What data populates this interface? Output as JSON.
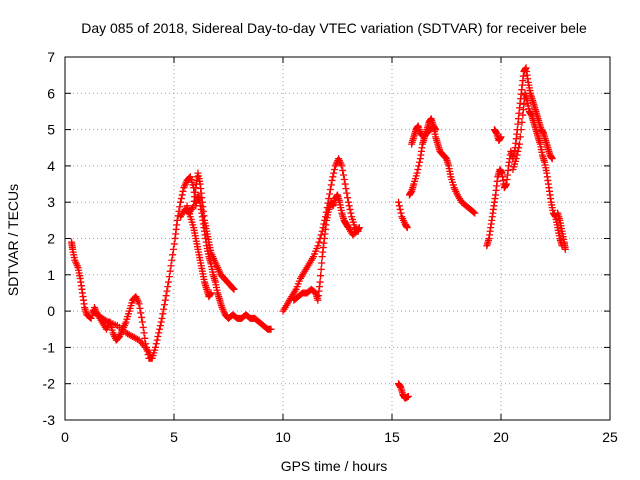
{
  "chart_data": {
    "type": "scatter",
    "title": "Day 085 of 2018, Sidereal Day-to-day VTEC variation (SDTVAR) for receiver bele",
    "xlabel": "GPS time / hours",
    "ylabel": "SDTVAR / TECUs",
    "xlim": [
      0,
      25
    ],
    "ylim": [
      -3,
      7
    ],
    "xticks": [
      0,
      5,
      10,
      15,
      20,
      25
    ],
    "yticks": [
      -3,
      -2,
      -1,
      0,
      1,
      2,
      3,
      4,
      5,
      6,
      7
    ],
    "x_tick_labels": [
      "0",
      "5",
      "10",
      "15",
      "20",
      "25"
    ],
    "y_tick_labels": [
      "-3",
      "-2",
      "-1",
      "0",
      "1",
      "2",
      "3",
      "4",
      "5",
      "6",
      "7"
    ],
    "grid": true,
    "marker": "plus",
    "series": [
      {
        "name": "SDTVAR",
        "color": "#ff0000",
        "segments": [
          [
            [
              0.3,
              1.9
            ],
            [
              0.35,
              1.7
            ],
            [
              0.45,
              1.4
            ],
            [
              0.6,
              1.2
            ],
            [
              0.7,
              0.9
            ],
            [
              0.8,
              0.5
            ],
            [
              0.9,
              0.1
            ],
            [
              1.0,
              -0.1
            ],
            [
              1.2,
              -0.2
            ],
            [
              1.35,
              0.1
            ],
            [
              1.5,
              -0.1
            ],
            [
              1.7,
              -0.3
            ],
            [
              1.9,
              -0.5
            ],
            [
              2.05,
              -0.3
            ],
            [
              2.2,
              -0.6
            ],
            [
              2.35,
              -0.8
            ],
            [
              2.5,
              -0.7
            ],
            [
              2.65,
              -0.5
            ],
            [
              2.8,
              -0.3
            ],
            [
              2.95,
              0.0
            ],
            [
              3.1,
              0.3
            ],
            [
              3.25,
              0.4
            ],
            [
              3.4,
              0.2
            ],
            [
              3.55,
              -0.3
            ],
            [
              3.7,
              -0.9
            ],
            [
              3.85,
              -1.3
            ],
            [
              4.0,
              -1.3
            ],
            [
              4.15,
              -1.0
            ],
            [
              4.3,
              -0.6
            ],
            [
              4.45,
              -0.2
            ],
            [
              4.6,
              0.3
            ],
            [
              4.75,
              0.8
            ],
            [
              4.9,
              1.4
            ],
            [
              5.05,
              2.0
            ],
            [
              5.15,
              2.5
            ],
            [
              5.3,
              3.0
            ],
            [
              5.45,
              3.4
            ],
            [
              5.6,
              3.6
            ],
            [
              5.75,
              3.7
            ],
            [
              5.9,
              3.4
            ],
            [
              6.0,
              2.9
            ],
            [
              6.1,
              3.2
            ],
            [
              6.2,
              3.0
            ],
            [
              6.3,
              2.6
            ],
            [
              6.4,
              2.2
            ],
            [
              6.5,
              1.8
            ],
            [
              6.6,
              1.5
            ],
            [
              6.7,
              1.3
            ],
            [
              6.8,
              1.0
            ],
            [
              6.9,
              0.8
            ],
            [
              7.0,
              0.5
            ],
            [
              7.1,
              0.3
            ],
            [
              7.2,
              0.1
            ],
            [
              7.35,
              -0.1
            ],
            [
              7.5,
              -0.2
            ],
            [
              7.7,
              -0.1
            ],
            [
              7.9,
              -0.2
            ],
            [
              8.1,
              -0.2
            ],
            [
              8.3,
              -0.1
            ],
            [
              8.5,
              -0.2
            ],
            [
              8.7,
              -0.2
            ],
            [
              8.9,
              -0.3
            ],
            [
              9.1,
              -0.4
            ],
            [
              9.3,
              -0.5
            ],
            [
              9.45,
              -0.5
            ]
          ],
          [
            [
              1.3,
              0.0
            ],
            [
              1.5,
              -0.1
            ],
            [
              1.7,
              -0.2
            ],
            [
              2.0,
              -0.3
            ],
            [
              2.4,
              -0.4
            ],
            [
              2.8,
              -0.6
            ],
            [
              3.1,
              -0.7
            ],
            [
              3.4,
              -0.8
            ],
            [
              3.7,
              -1.0
            ],
            [
              3.9,
              -1.2
            ]
          ],
          [
            [
              5.3,
              2.6
            ],
            [
              5.5,
              2.8
            ],
            [
              5.7,
              2.7
            ],
            [
              5.9,
              2.9
            ],
            [
              6.0,
              3.4
            ],
            [
              6.1,
              3.8
            ],
            [
              6.2,
              3.5
            ],
            [
              6.3,
              3.0
            ],
            [
              6.4,
              2.5
            ],
            [
              6.5,
              2.2
            ],
            [
              6.6,
              1.9
            ],
            [
              6.7,
              1.6
            ],
            [
              6.85,
              1.4
            ],
            [
              7.0,
              1.2
            ],
            [
              7.15,
              1.0
            ],
            [
              7.3,
              0.9
            ],
            [
              7.45,
              0.8
            ],
            [
              7.6,
              0.7
            ],
            [
              7.75,
              0.6
            ]
          ],
          [
            [
              5.6,
              2.9
            ],
            [
              5.75,
              2.6
            ],
            [
              5.9,
              2.3
            ],
            [
              6.0,
              2.0
            ],
            [
              6.1,
              1.7
            ],
            [
              6.2,
              1.4
            ],
            [
              6.3,
              1.1
            ],
            [
              6.4,
              0.8
            ],
            [
              6.5,
              0.6
            ],
            [
              6.6,
              0.4
            ],
            [
              6.7,
              0.5
            ]
          ],
          [
            [
              10.0,
              0.0
            ],
            [
              10.2,
              0.2
            ],
            [
              10.4,
              0.4
            ],
            [
              10.6,
              0.6
            ],
            [
              10.8,
              0.9
            ],
            [
              11.0,
              1.1
            ],
            [
              11.2,
              1.3
            ],
            [
              11.4,
              1.5
            ],
            [
              11.6,
              1.8
            ],
            [
              11.8,
              2.2
            ],
            [
              11.95,
              2.6
            ],
            [
              12.1,
              3.1
            ],
            [
              12.25,
              3.6
            ],
            [
              12.4,
              4.0
            ],
            [
              12.55,
              4.2
            ],
            [
              12.7,
              4.0
            ],
            [
              12.85,
              3.5
            ],
            [
              13.0,
              3.0
            ],
            [
              13.15,
              2.6
            ],
            [
              13.3,
              2.3
            ],
            [
              13.45,
              2.2
            ]
          ],
          [
            [
              10.5,
              0.3
            ],
            [
              10.7,
              0.4
            ],
            [
              10.9,
              0.5
            ],
            [
              11.1,
              0.5
            ],
            [
              11.3,
              0.6
            ],
            [
              11.5,
              0.5
            ],
            [
              11.6,
              0.3
            ],
            [
              11.7,
              0.8
            ],
            [
              11.8,
              1.5
            ],
            [
              11.9,
              2.0
            ],
            [
              12.0,
              2.5
            ],
            [
              12.1,
              2.8
            ],
            [
              12.2,
              3.0
            ],
            [
              12.3,
              2.9
            ],
            [
              12.4,
              3.1
            ],
            [
              12.5,
              3.2
            ],
            [
              12.6,
              3.0
            ],
            [
              12.7,
              2.7
            ],
            [
              12.8,
              2.5
            ],
            [
              12.9,
              2.4
            ],
            [
              13.0,
              2.3
            ],
            [
              13.2,
              2.1
            ],
            [
              13.4,
              2.2
            ],
            [
              13.5,
              2.3
            ]
          ],
          [
            [
              15.3,
              -2.0
            ],
            [
              15.4,
              -2.1
            ],
            [
              15.5,
              -2.3
            ],
            [
              15.6,
              -2.4
            ],
            [
              15.75,
              -2.35
            ]
          ],
          [
            [
              15.3,
              3.0
            ],
            [
              15.45,
              2.6
            ],
            [
              15.6,
              2.4
            ],
            [
              15.7,
              2.3
            ]
          ],
          [
            [
              15.8,
              3.2
            ],
            [
              15.9,
              3.3
            ],
            [
              16.0,
              3.5
            ],
            [
              16.15,
              3.8
            ],
            [
              16.3,
              4.2
            ],
            [
              16.4,
              4.6
            ],
            [
              16.5,
              4.8
            ],
            [
              16.6,
              5.0
            ],
            [
              16.7,
              5.2
            ],
            [
              16.8,
              5.3
            ],
            [
              16.9,
              5.1
            ],
            [
              17.0,
              4.8
            ],
            [
              17.1,
              4.6
            ],
            [
              17.2,
              4.4
            ],
            [
              17.35,
              4.3
            ],
            [
              17.5,
              4.2
            ],
            [
              17.6,
              4.0
            ],
            [
              17.7,
              3.7
            ],
            [
              17.85,
              3.4
            ],
            [
              18.0,
              3.2
            ],
            [
              18.2,
              3.0
            ],
            [
              18.4,
              2.9
            ],
            [
              18.6,
              2.8
            ],
            [
              18.8,
              2.7
            ]
          ],
          [
            [
              15.9,
              4.6
            ],
            [
              16.0,
              4.8
            ],
            [
              16.1,
              5.0
            ],
            [
              16.2,
              5.1
            ],
            [
              16.3,
              4.9
            ],
            [
              16.45,
              4.8
            ],
            [
              16.6,
              4.9
            ],
            [
              16.75,
              5.0
            ],
            [
              16.9,
              5.1
            ],
            [
              17.0,
              5.0
            ]
          ],
          [
            [
              19.35,
              1.8
            ],
            [
              19.45,
              2.0
            ],
            [
              19.55,
              2.4
            ],
            [
              19.65,
              2.8
            ],
            [
              19.75,
              3.2
            ],
            [
              19.85,
              3.7
            ],
            [
              19.95,
              3.9
            ],
            [
              20.05,
              3.8
            ],
            [
              20.15,
              3.4
            ],
            [
              20.25,
              3.5
            ],
            [
              20.35,
              4.0
            ],
            [
              20.45,
              4.4
            ],
            [
              20.55,
              4.2
            ],
            [
              20.65,
              4.5
            ],
            [
              20.75,
              5.0
            ],
            [
              20.85,
              5.6
            ],
            [
              20.95,
              6.1
            ],
            [
              21.05,
              6.6
            ],
            [
              21.15,
              6.7
            ],
            [
              21.25,
              6.3
            ],
            [
              21.35,
              6.0
            ],
            [
              21.45,
              5.8
            ],
            [
              21.55,
              5.6
            ],
            [
              21.65,
              5.4
            ],
            [
              21.75,
              5.2
            ],
            [
              21.85,
              5.0
            ],
            [
              21.95,
              4.9
            ],
            [
              22.05,
              4.7
            ],
            [
              22.15,
              4.5
            ],
            [
              22.25,
              4.3
            ],
            [
              22.35,
              4.2
            ]
          ],
          [
            [
              19.7,
              5.0
            ],
            [
              19.8,
              4.9
            ],
            [
              19.9,
              4.7
            ],
            [
              20.0,
              4.8
            ]
          ],
          [
            [
              20.55,
              3.9
            ],
            [
              20.7,
              4.2
            ],
            [
              20.85,
              4.6
            ],
            [
              21.0,
              5.4
            ],
            [
              21.1,
              6.0
            ],
            [
              21.2,
              5.8
            ],
            [
              21.3,
              5.5
            ],
            [
              21.4,
              5.4
            ],
            [
              21.5,
              5.2
            ],
            [
              21.6,
              5.0
            ],
            [
              21.7,
              4.8
            ],
            [
              21.8,
              4.6
            ],
            [
              21.9,
              4.3
            ],
            [
              22.0,
              4.1
            ],
            [
              22.1,
              3.8
            ],
            [
              22.2,
              3.4
            ],
            [
              22.3,
              3.0
            ],
            [
              22.4,
              2.7
            ],
            [
              22.5,
              2.6
            ],
            [
              22.6,
              2.3
            ],
            [
              22.7,
              2.0
            ],
            [
              22.8,
              1.8
            ]
          ],
          [
            [
              22.6,
              2.7
            ],
            [
              22.7,
              2.5
            ],
            [
              22.8,
              2.2
            ],
            [
              22.9,
              1.9
            ],
            [
              22.95,
              1.7
            ]
          ]
        ]
      }
    ]
  }
}
